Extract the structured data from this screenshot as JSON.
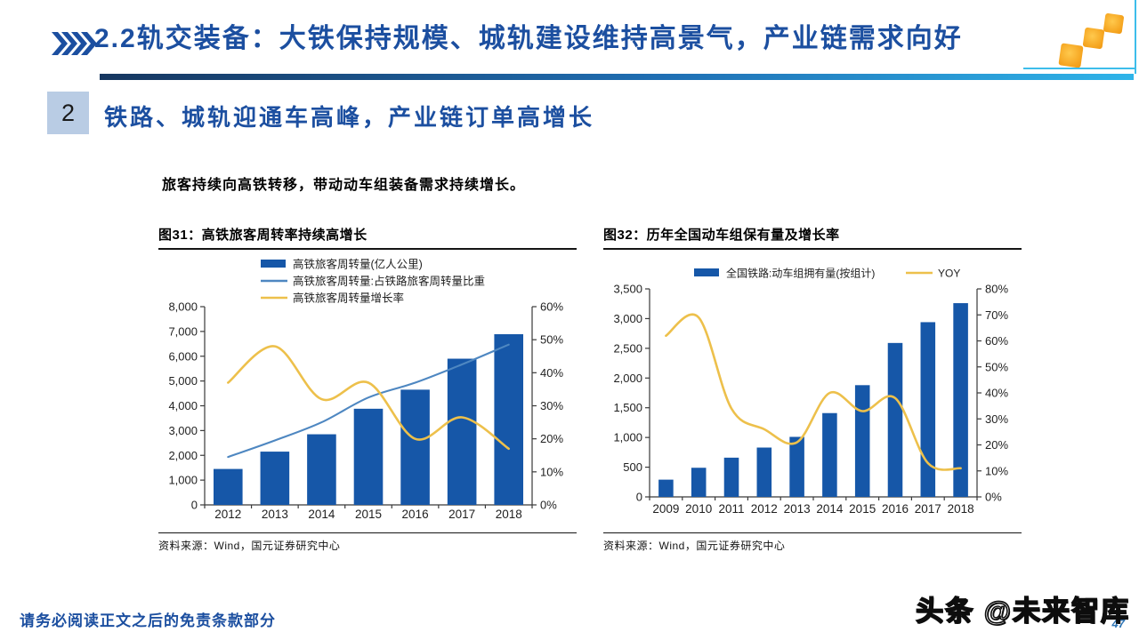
{
  "header": {
    "title": "2.2轨交装备：大铁保持规模、城轨建设维持高景气，产业链需求向好"
  },
  "section": {
    "number": "2",
    "heading": "铁路、城轨迎通车高峰，产业链订单高增长"
  },
  "intro": "旅客持续向高铁转移，带动动车组装备需求持续增长。",
  "chart_data": [
    {
      "type": "bar",
      "title": "图31：高铁旅客周转率持续高增长",
      "source": "资料来源：Wind，国元证券研究中心",
      "categories": [
        "2012",
        "2013",
        "2014",
        "2015",
        "2016",
        "2017",
        "2018"
      ],
      "series": [
        {
          "name": "高铁旅客周转量(亿人公里)",
          "kind": "bar",
          "axis": "left",
          "color": "#1657A8",
          "values": [
            1450,
            2150,
            2850,
            3880,
            4650,
            5900,
            6890
          ]
        },
        {
          "name": "高铁旅客周转量:占铁路旅客周转量比重",
          "kind": "line",
          "axis": "right",
          "color": "#4E87C1",
          "values": [
            14.5,
            19.5,
            25,
            32.5,
            37,
            42.5,
            48.5
          ]
        },
        {
          "name": "高铁旅客周转量增长率",
          "kind": "line",
          "axis": "right",
          "color": "#EDC04B",
          "values": [
            37,
            48,
            32,
            37,
            20,
            26.5,
            17
          ]
        }
      ],
      "left_axis": {
        "min": 0,
        "max": 8000,
        "step": 1000,
        "format": "number"
      },
      "right_axis": {
        "min": 0,
        "max": 60,
        "step": 10,
        "format": "percent"
      },
      "legend_position": "top-stacked",
      "grid": false
    },
    {
      "type": "bar",
      "title": "图32：历年全国动车组保有量及增长率",
      "source": "资料来源：Wind，国元证券研究中心",
      "categories": [
        "2009",
        "2010",
        "2011",
        "2012",
        "2013",
        "2014",
        "2015",
        "2016",
        "2017",
        "2018"
      ],
      "series": [
        {
          "name": "全国铁路:动车组拥有量(按组计)",
          "kind": "bar",
          "axis": "left",
          "color": "#1657A8",
          "values": [
            290,
            490,
            660,
            830,
            1010,
            1410,
            1880,
            2590,
            2940,
            3260
          ]
        },
        {
          "name": "YOY",
          "kind": "line",
          "axis": "right",
          "color": "#EDC04B",
          "values": [
            62,
            69,
            34,
            26,
            21,
            40,
            33,
            38,
            13,
            11
          ]
        }
      ],
      "left_axis": {
        "min": 0,
        "max": 3500,
        "step": 500,
        "format": "number"
      },
      "right_axis": {
        "min": 0,
        "max": 80,
        "step": 10,
        "format": "percent"
      },
      "legend_position": "top-row",
      "grid": false
    }
  ],
  "footer": {
    "disclaimer": "请务必阅读正文之后的免责条款部分",
    "watermark": "头条 @未来智库",
    "page_number": "47"
  },
  "colors": {
    "accent_blue": "#1C4FA0",
    "bar_blue": "#1657A8",
    "line_blue": "#4E87C1",
    "line_yellow": "#EDC04B",
    "badge_bg": "#B9CCE4",
    "rule_gradient_start": "#16365F",
    "rule_gradient_end": "#2FB4E9",
    "logo_orange": "#F5A41F",
    "cyan_line": "#3DBDEB"
  }
}
